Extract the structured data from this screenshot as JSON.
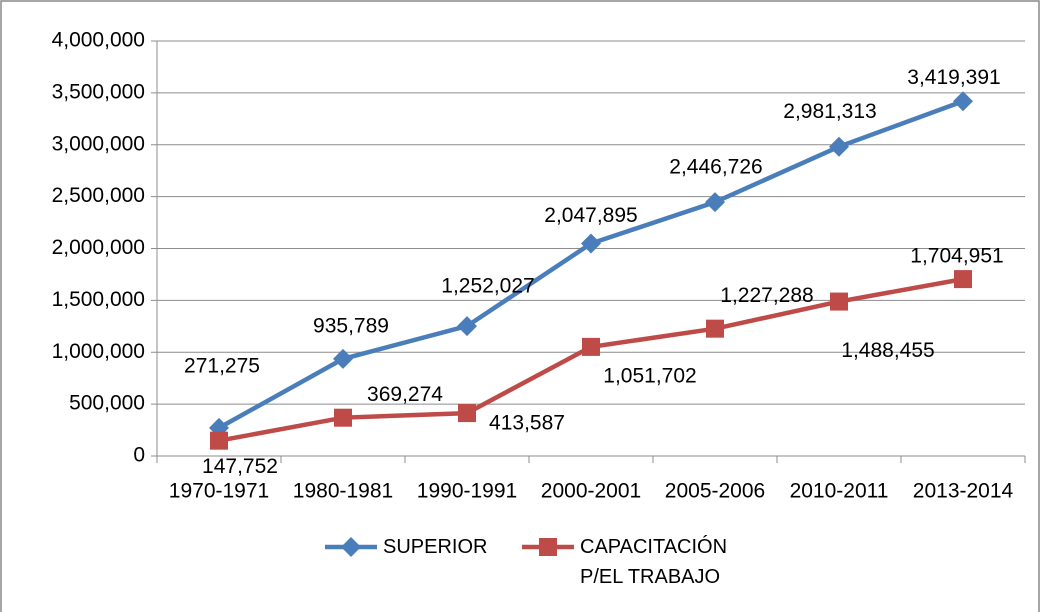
{
  "chart_data": {
    "type": "line",
    "categories": [
      "1970-1971",
      "1980-1981",
      "1990-1991",
      "2000-2001",
      "2005-2006",
      "2010-2011",
      "2013-2014"
    ],
    "series": [
      {
        "name": "SUPERIOR",
        "color": "#4a7ebb",
        "marker": "diamond",
        "values": [
          271275,
          935789,
          1252027,
          2047895,
          2446726,
          2981313,
          3419391
        ],
        "value_labels": [
          "271,275",
          "935,789",
          "1,252,027",
          "2,047,895",
          "2,446,726",
          "2,981,313",
          "3,419,391"
        ]
      },
      {
        "name": "CAPACITACIÓN P/EL TRABAJO",
        "color": "#be4b48",
        "marker": "square",
        "values": [
          147752,
          369274,
          413587,
          1051702,
          1227288,
          1488455,
          1704951
        ],
        "value_labels": [
          "147,752",
          "369,274",
          "413,587",
          "1,051,702",
          "1,227,288",
          "1,488,455",
          "1,704,951"
        ]
      }
    ],
    "ylim": [
      0,
      4000000
    ],
    "yticks": [
      0,
      {
        "value": 500000,
        "label": "500,000"
      },
      {
        "value": 1000000,
        "label": "1,000,000"
      },
      {
        "value": 1500000,
        "label": "1,500,000"
      },
      {
        "value": 2000000,
        "label": "2,000,000"
      },
      {
        "value": 2500000,
        "label": "2,500,000"
      },
      {
        "value": 3000000,
        "label": "3,000,000"
      },
      {
        "value": 3500000,
        "label": "3,500,000"
      },
      {
        "value": 4000000,
        "label": "4,000,000"
      }
    ],
    "grid": true,
    "legend": "bottom"
  }
}
